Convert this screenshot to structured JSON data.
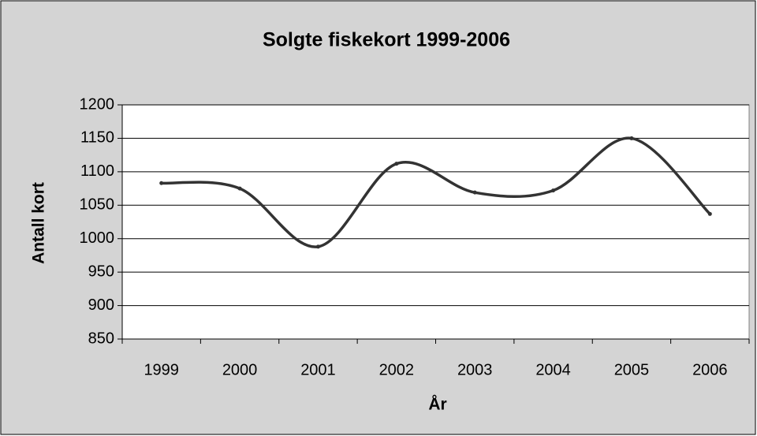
{
  "chart_data": {
    "type": "line",
    "title": "Solgte fiskekort 1999-2006",
    "x_label": "År",
    "y_label": "Antall kort",
    "categories": [
      "1999",
      "2000",
      "2001",
      "2002",
      "2003",
      "2004",
      "2005",
      "2006"
    ],
    "series": [
      {
        "name": "Solgte fiskekort",
        "color": "#333333",
        "values": [
          1083,
          1075,
          988,
          1112,
          1069,
          1072,
          1150,
          1037
        ]
      }
    ],
    "ylim": [
      850,
      1200
    ],
    "yticks": [
      850,
      900,
      950,
      1000,
      1050,
      1100,
      1150,
      1200
    ],
    "grid": true,
    "smooth": true
  }
}
